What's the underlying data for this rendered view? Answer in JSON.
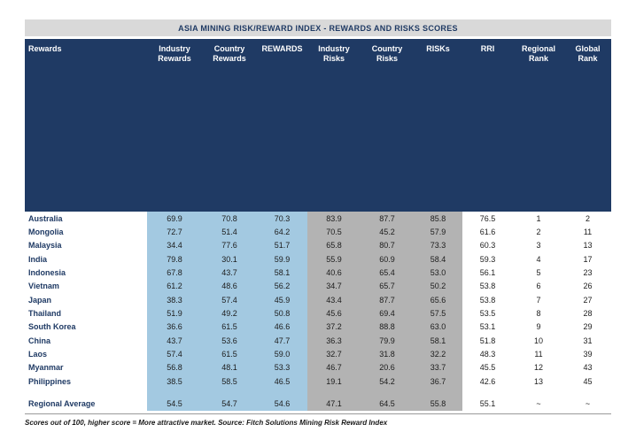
{
  "title_bar": "ASIA MINING RISK/REWARD INDEX - REWARDS AND RISKS SCORES",
  "columns_display": [
    "Rewards",
    "Industry\nRewards",
    "Country\nRewards",
    "REWARDS",
    "Industry\nRisks",
    "Country\nRisks",
    "RISKs",
    "RRI",
    "Regional\nRank",
    "Global Rank"
  ],
  "footnote": "Scores out of 100, higher score = More attractive market. Source: Fitch Solutions Mining Risk Reward Index",
  "colors": {
    "navy": "#1f3a64",
    "blue": "#a3c9e1",
    "gray": "#b3b3b3",
    "titlebar": "#d9d9d9"
  },
  "chart_data": {
    "type": "table",
    "title": "ASIA MINING RISK/REWARD INDEX - REWARDS AND RISKS SCORES",
    "columns": [
      "Rewards",
      "Industry Rewards",
      "Country Rewards",
      "REWARDS",
      "Industry Risks",
      "Country Risks",
      "RISKs",
      "RRI",
      "Regional Rank",
      "Global Rank"
    ],
    "rows": [
      {
        "label": "Australia",
        "values": [
          "69.9",
          "70.8",
          "70.3",
          "83.9",
          "87.7",
          "85.8",
          "76.5",
          "1",
          "2"
        ]
      },
      {
        "label": "Mongolia",
        "values": [
          "72.7",
          "51.4",
          "64.2",
          "70.5",
          "45.2",
          "57.9",
          "61.6",
          "2",
          "11"
        ]
      },
      {
        "label": "Malaysia",
        "values": [
          "34.4",
          "77.6",
          "51.7",
          "65.8",
          "80.7",
          "73.3",
          "60.3",
          "3",
          "13"
        ]
      },
      {
        "label": "India",
        "values": [
          "79.8",
          "30.1",
          "59.9",
          "55.9",
          "60.9",
          "58.4",
          "59.3",
          "4",
          "17"
        ]
      },
      {
        "label": "Indonesia",
        "values": [
          "67.8",
          "43.7",
          "58.1",
          "40.6",
          "65.4",
          "53.0",
          "56.1",
          "5",
          "23"
        ]
      },
      {
        "label": "Vietnam",
        "values": [
          "61.2",
          "48.6",
          "56.2",
          "34.7",
          "65.7",
          "50.2",
          "53.8",
          "6",
          "26"
        ]
      },
      {
        "label": "Japan",
        "values": [
          "38.3",
          "57.4",
          "45.9",
          "43.4",
          "87.7",
          "65.6",
          "53.8",
          "7",
          "27"
        ]
      },
      {
        "label": "Thailand",
        "values": [
          "51.9",
          "49.2",
          "50.8",
          "45.6",
          "69.4",
          "57.5",
          "53.5",
          "8",
          "28"
        ]
      },
      {
        "label": "South Korea",
        "values": [
          "36.6",
          "61.5",
          "46.6",
          "37.2",
          "88.8",
          "63.0",
          "53.1",
          "9",
          "29"
        ]
      },
      {
        "label": "China",
        "values": [
          "43.7",
          "53.6",
          "47.7",
          "36.3",
          "79.9",
          "58.1",
          "51.8",
          "10",
          "31"
        ]
      },
      {
        "label": "Laos",
        "values": [
          "57.4",
          "61.5",
          "59.0",
          "32.7",
          "31.8",
          "32.2",
          "48.3",
          "11",
          "39"
        ]
      },
      {
        "label": "Myanmar",
        "values": [
          "56.8",
          "48.1",
          "53.3",
          "46.7",
          "20.6",
          "33.7",
          "45.5",
          "12",
          "43"
        ]
      },
      {
        "label": "Philippines",
        "values": [
          "38.5",
          "58.5",
          "46.5",
          "19.1",
          "54.2",
          "36.7",
          "42.6",
          "13",
          "45"
        ]
      }
    ],
    "summary_row": {
      "label": "Regional Average",
      "values": [
        "54.5",
        "54.7",
        "54.6",
        "47.1",
        "64.5",
        "55.8",
        "55.1",
        "~",
        "~"
      ]
    }
  }
}
